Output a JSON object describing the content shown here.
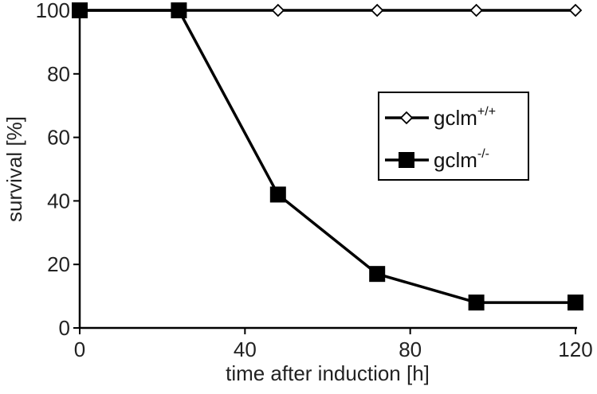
{
  "chart_data": {
    "type": "line",
    "xlabel": "time after induction [h]",
    "ylabel": "survival [%]",
    "xlim": [
      0,
      120
    ],
    "ylim": [
      0,
      100
    ],
    "xticks": [
      0,
      40,
      80,
      120
    ],
    "yticks": [
      0,
      20,
      40,
      60,
      80,
      100
    ],
    "grid": false,
    "legend_position": "right",
    "series": [
      {
        "name": "gclm+/+",
        "label_base": "gclm",
        "label_sup": "+/+",
        "marker": "diamond-open",
        "color": "#000000",
        "x": [
          0,
          24,
          48,
          72,
          96,
          120
        ],
        "y": [
          100,
          100,
          100,
          100,
          100,
          100
        ]
      },
      {
        "name": "gclm-/-",
        "label_base": "gclm",
        "label_sup": "-/-",
        "marker": "square-filled",
        "color": "#000000",
        "x": [
          0,
          24,
          48,
          72,
          96,
          120
        ],
        "y": [
          100,
          100,
          42,
          17,
          8,
          8
        ]
      }
    ]
  }
}
